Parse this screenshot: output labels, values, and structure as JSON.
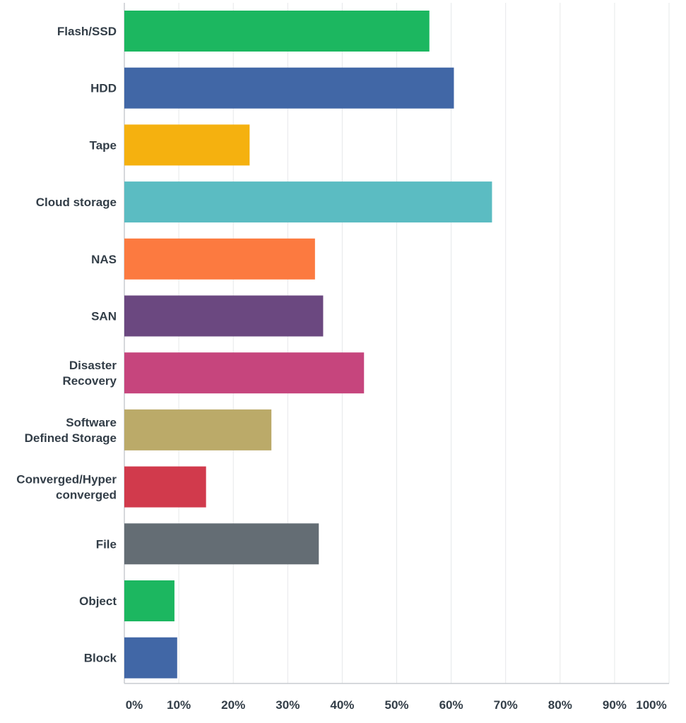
{
  "chart_data": {
    "type": "bar",
    "orientation": "horizontal",
    "title": "",
    "xlabel": "",
    "ylabel": "",
    "categories": [
      "Flash/SSD",
      "HDD",
      "Tape",
      "Cloud storage",
      "NAS",
      "SAN",
      "Disaster Recovery",
      "Software Defined Storage",
      "Converged/Hyper converged",
      "File",
      "Object",
      "Block"
    ],
    "category_lines": [
      [
        "Flash/SSD"
      ],
      [
        "HDD"
      ],
      [
        "Tape"
      ],
      [
        "Cloud storage"
      ],
      [
        "NAS"
      ],
      [
        "SAN"
      ],
      [
        "Disaster",
        "Recovery"
      ],
      [
        "Software",
        "Defined Storage"
      ],
      [
        "Converged/Hyper",
        "converged"
      ],
      [
        "File"
      ],
      [
        "Object"
      ],
      [
        "Block"
      ]
    ],
    "values": [
      56.0,
      60.5,
      23.0,
      67.5,
      35.0,
      36.5,
      44.0,
      27.0,
      15.0,
      35.7,
      9.2,
      9.7
    ],
    "colors": [
      "#1cb760",
      "#4167a6",
      "#f5b10f",
      "#5bbcc2",
      "#fc7a40",
      "#6b4880",
      "#c6457d",
      "#bbaa69",
      "#d13a4c",
      "#646d74",
      "#1cb760",
      "#4167a6"
    ],
    "xlim": [
      0,
      100
    ],
    "xticks": [
      "0%",
      "10%",
      "20%",
      "30%",
      "40%",
      "50%",
      "60%",
      "70%",
      "80%",
      "90%",
      "100%"
    ],
    "grid": true,
    "legend": "none"
  }
}
